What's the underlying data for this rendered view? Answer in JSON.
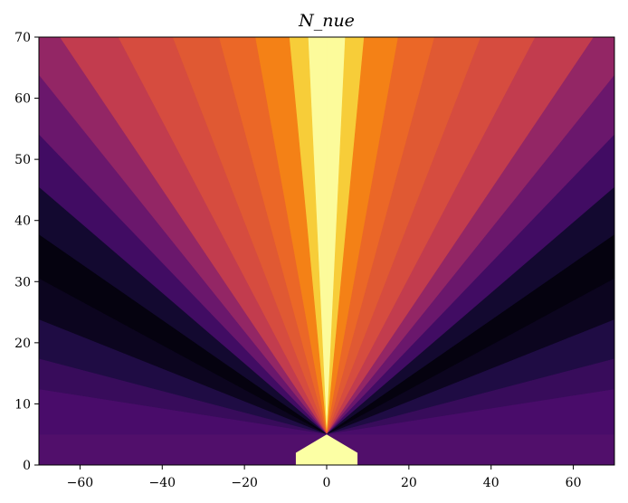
{
  "chart_data": {
    "type": "heatmap",
    "title": "N_nue",
    "xlabel": "",
    "ylabel": "",
    "xlim": [
      -70,
      70
    ],
    "ylim": [
      0,
      70
    ],
    "x_ticks": [
      -60,
      -40,
      -20,
      0,
      20,
      40,
      60
    ],
    "x_tick_labels": [
      "−60",
      "−40",
      "−20",
      "0",
      "20",
      "40",
      "60"
    ],
    "y_ticks": [
      0,
      10,
      20,
      30,
      40,
      50,
      60,
      70
    ],
    "y_tick_labels": [
      "0",
      "10",
      "20",
      "30",
      "40",
      "50",
      "60",
      "70"
    ],
    "colormap": "inferno",
    "grid": false,
    "legend": "none",
    "central_region": {
      "vertices": [
        [
          -7.5,
          0
        ],
        [
          -7.5,
          2
        ],
        [
          0,
          5
        ],
        [
          7.5,
          2
        ],
        [
          7.5,
          0
        ]
      ],
      "level": 1.0
    },
    "angular_bins": [
      {
        "angle_from_vertical_deg": [
          0,
          4
        ],
        "level": 0.99
      },
      {
        "angle_from_vertical_deg": [
          4,
          8
        ],
        "level": 0.88
      },
      {
        "angle_from_vertical_deg": [
          8,
          15
        ],
        "level": 0.72
      },
      {
        "angle_from_vertical_deg": [
          15,
          22
        ],
        "level": 0.66
      },
      {
        "angle_from_vertical_deg": [
          22,
          30
        ],
        "level": 0.62
      },
      {
        "angle_from_vertical_deg": [
          30,
          38
        ],
        "level": 0.58
      },
      {
        "angle_from_vertical_deg": [
          38,
          45
        ],
        "level": 0.52
      },
      {
        "angle_from_vertical_deg": [
          45,
          50
        ],
        "level": 0.4
      },
      {
        "angle_from_vertical_deg": [
          50,
          55
        ],
        "level": 0.3
      },
      {
        "angle_from_vertical_deg": [
          55,
          60
        ],
        "level": 0.2
      },
      {
        "angle_from_vertical_deg": [
          60,
          65
        ],
        "level": 0.08
      },
      {
        "angle_from_vertical_deg": [
          65,
          70
        ],
        "level": 0.02
      },
      {
        "angle_from_vertical_deg": [
          70,
          75
        ],
        "level": 0.05
      },
      {
        "angle_from_vertical_deg": [
          75,
          80
        ],
        "level": 0.12
      },
      {
        "angle_from_vertical_deg": [
          80,
          84
        ],
        "level": 0.18
      },
      {
        "angle_from_vertical_deg": [
          84,
          90
        ],
        "level": 0.22
      }
    ],
    "colors": {
      "axes": "#000000",
      "background": "#ffffff",
      "inferno_stops": [
        "#000004",
        "#1b0c41",
        "#4a0c6b",
        "#781c6d",
        "#a52c60",
        "#cf4446",
        "#ed6925",
        "#fb9b06",
        "#f7d13d",
        "#fcffa4"
      ]
    }
  }
}
